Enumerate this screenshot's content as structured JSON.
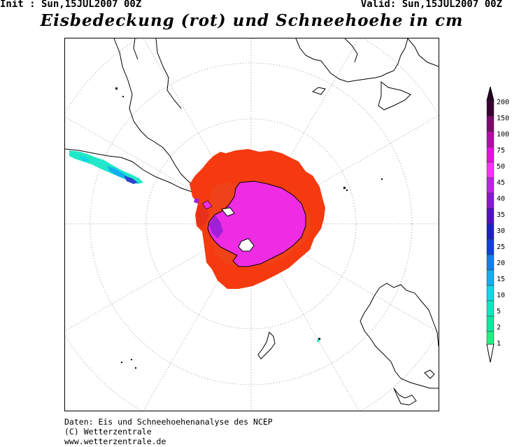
{
  "header": {
    "init_text": "Init : Sun,15JUL2007 00Z",
    "valid_text": "Valid: Sun,15JUL2007 00Z"
  },
  "title": "Eisbedeckung (rot) und Schneehoehe in cm",
  "footer": {
    "line1": "Daten: Eis und Schneehoehenanalyse des NCEP",
    "line2": "(C) Wetterzentrale",
    "line3": "www.wetterzentrale.de"
  },
  "legend": {
    "labels": [
      "200",
      "150",
      "100",
      "75",
      "50",
      "45",
      "40",
      "35",
      "30",
      "25",
      "20",
      "15",
      "10",
      "5",
      "2",
      "1"
    ],
    "colors": [
      "#3a0032",
      "#7a0a6c",
      "#b80ca8",
      "#e60ee0",
      "#ff30ff",
      "#c020e8",
      "#8818d8",
      "#5010c8",
      "#2020c8",
      "#1040e0",
      "#1080f0",
      "#10b0f0",
      "#10d8e8",
      "#10e8c0",
      "#10e8a0",
      "#20f080"
    ]
  },
  "map": {
    "ice_color": "#f53a10",
    "snow_color": "#ee2ce4",
    "ice_dark_color": "#e0301a"
  }
}
